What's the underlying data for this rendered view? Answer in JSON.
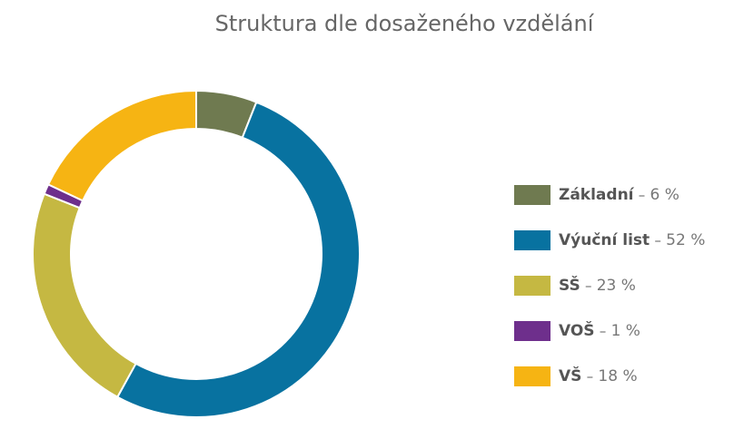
{
  "chart_data": {
    "type": "donut",
    "title": "Struktura dle dosaženého vzdělání",
    "categories": [
      "Základní",
      "Výuční list",
      "SŠ",
      "VOŠ",
      "VŠ"
    ],
    "values": [
      6,
      52,
      23,
      1,
      18
    ],
    "value_labels": [
      "6 %",
      "52 %",
      "23 %",
      "1 %",
      "18 %"
    ],
    "colors": [
      "#6f7a50",
      "#0872a0",
      "#c5b842",
      "#6e2f8c",
      "#f6b413"
    ],
    "legend": "right"
  }
}
